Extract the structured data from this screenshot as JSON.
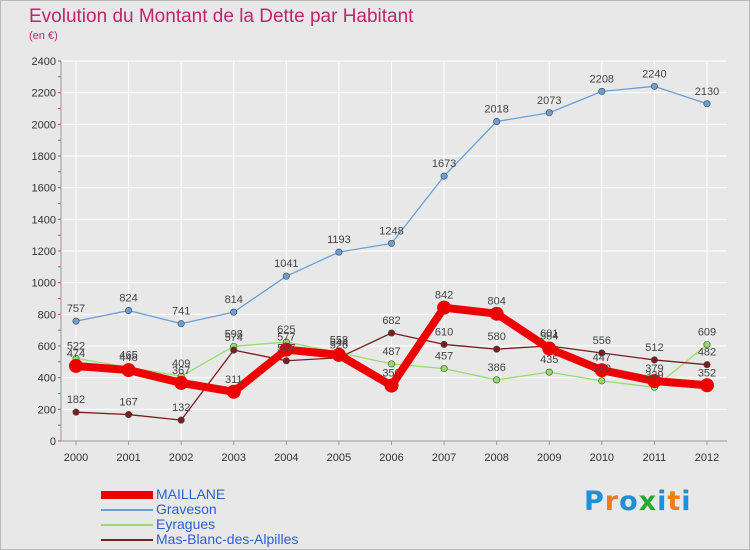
{
  "title": "Evolution du Montant de la Dette par Habitant",
  "unit": "(en €)",
  "brand": {
    "text": "Proxiti",
    "letter_colors": [
      "#1f8fd8",
      "#ef7d19",
      "#1f8fd8",
      "#27a836",
      "#1f8fd8",
      "#ef7d19",
      "#1f8fd8"
    ]
  },
  "chart_data": {
    "type": "line",
    "x": [
      "2000",
      "2001",
      "2002",
      "2003",
      "2004",
      "2005",
      "2006",
      "2007",
      "2008",
      "2009",
      "2010",
      "2011",
      "2012"
    ],
    "ylim": [
      0,
      2400
    ],
    "yticks": [
      "0",
      "200",
      "400",
      "600",
      "800",
      "1000",
      "1200",
      "1400",
      "1600",
      "1800",
      "2000",
      "2200",
      "2400"
    ],
    "grid": true,
    "legend_position": "bottom-left",
    "series": [
      {
        "name": "MAILLANE",
        "color": "#ee0000",
        "values": [
          474,
          448,
          367,
          311,
          577,
          544,
          350,
          842,
          804,
          584,
          447,
          379,
          352
        ],
        "labels": [
          "474",
          "448",
          "367",
          "311",
          "577",
          "544",
          "350",
          "842",
          "804",
          "584",
          "447",
          "379",
          "352"
        ]
      },
      {
        "name": "Graveson",
        "color": "#6a9fd6",
        "values": [
          757,
          824,
          741,
          814,
          1041,
          1193,
          1248,
          1673,
          2018,
          2073,
          2208,
          2240,
          2130
        ],
        "labels": [
          "757",
          "824",
          "741",
          "814",
          "1041",
          "1193",
          "1248",
          "1673",
          "2018",
          "2073",
          "2208",
          "2240",
          "2130"
        ]
      },
      {
        "name": "Eyragues",
        "color": "#94dd6b",
        "values": [
          522,
          465,
          409,
          598,
          625,
          558,
          487,
          457,
          386,
          435,
          380,
          339,
          609
        ],
        "labels": [
          "522",
          "465",
          "409",
          "598",
          "625",
          "558",
          "487",
          "457",
          "386",
          "435",
          "380",
          "339",
          "609"
        ]
      },
      {
        "name": "Mas-Blanc-des-Alpilles",
        "color": "#7a1d1d",
        "values": [
          182,
          167,
          132,
          574,
          507,
          526,
          682,
          610,
          580,
          601,
          556,
          512,
          482
        ],
        "labels": [
          "182",
          "167",
          "132",
          "574",
          "507",
          "526",
          "682",
          "610",
          "580",
          "601",
          "556",
          "512",
          "482"
        ]
      }
    ]
  }
}
